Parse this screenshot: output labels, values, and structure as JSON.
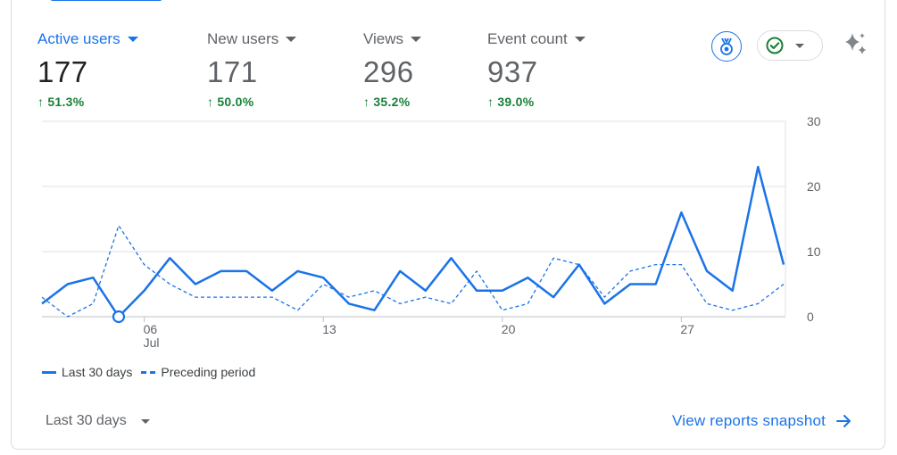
{
  "metrics": [
    {
      "label": "Active users",
      "value": "177",
      "change": "51.3%",
      "active": true
    },
    {
      "label": "New users",
      "value": "171",
      "change": "50.0%",
      "active": false
    },
    {
      "label": "Views",
      "value": "296",
      "change": "35.2%",
      "active": false
    },
    {
      "label": "Event count",
      "value": "937",
      "change": "39.0%",
      "active": false
    }
  ],
  "icons": {
    "insight": "medal-insight-icon",
    "status": "check-circle-icon",
    "sparkle": "sparkle-icon",
    "arrow_up": "↑",
    "arrow_right": "arrow-right-icon"
  },
  "colors": {
    "accent": "#1a73e8",
    "positive": "#188038",
    "grid": "#e0e0e0",
    "muted_text": "#5f6368"
  },
  "chart_data": {
    "type": "line",
    "x_tick_labels": [
      {
        "day": 6,
        "label": "06",
        "sublabel": "Jul"
      },
      {
        "day": 13,
        "label": "13",
        "sublabel": ""
      },
      {
        "day": 20,
        "label": "20",
        "sublabel": ""
      },
      {
        "day": 27,
        "label": "27",
        "sublabel": ""
      }
    ],
    "x_range": [
      2,
      31
    ],
    "y_ticks": [
      "0",
      "10",
      "20",
      "30"
    ],
    "ylim": [
      0,
      30
    ],
    "series": [
      {
        "name": "Last 30 days",
        "style": "solid",
        "values": [
          2,
          5,
          6,
          0,
          4,
          9,
          5,
          7,
          7,
          4,
          7,
          6,
          2,
          1,
          7,
          4,
          9,
          4,
          4,
          6,
          3,
          8,
          2,
          5,
          5,
          16,
          7,
          4,
          23,
          8
        ]
      },
      {
        "name": "Preceding period",
        "style": "dashed",
        "values": [
          3,
          0,
          2,
          14,
          8,
          5,
          3,
          3,
          3,
          3,
          1,
          5,
          3,
          4,
          2,
          3,
          2,
          7,
          1,
          2,
          9,
          8,
          3,
          7,
          8,
          8,
          2,
          1,
          2,
          5
        ]
      }
    ],
    "highlight_point_index": 3,
    "grid": true,
    "legend_position": "bottom-left"
  },
  "legend": {
    "solid_label": "Last 30 days",
    "dashed_label": "Preceding period"
  },
  "footer": {
    "range_label": "Last 30 days",
    "link_label": "View reports snapshot"
  }
}
